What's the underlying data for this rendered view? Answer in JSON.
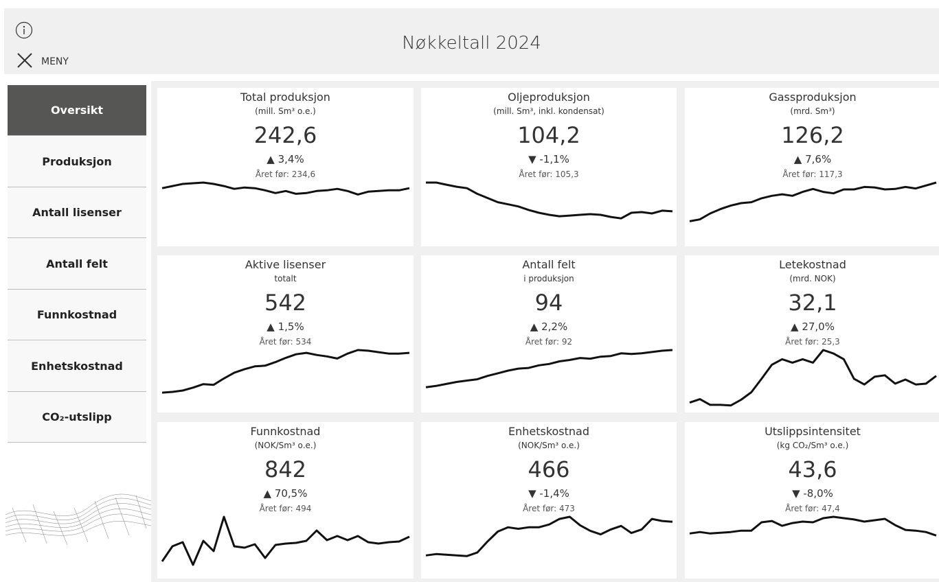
{
  "header": {
    "title": "Nøkkeltall 2024",
    "menu_label": "MENY"
  },
  "sidebar": {
    "items": [
      "Oversikt",
      "Produksjon",
      "Antall lisenser",
      "Antall felt",
      "Funnkostnad",
      "Enhetskostnad",
      "CO₂-utslipp"
    ],
    "active": 0
  },
  "cards": [
    {
      "title": "Total produksjon",
      "subtitle": "(mill. Sm³ o.e.)",
      "value": "242,6",
      "change": "▲ 3,4%",
      "prior": "Året før: 234,6",
      "trend": [
        240,
        249,
        258,
        261,
        264,
        258,
        249,
        237,
        243,
        240,
        231,
        219,
        228,
        216,
        219,
        228,
        231,
        237,
        228,
        213,
        225,
        228,
        231,
        231,
        240
      ]
    },
    {
      "title": "Oljeproduksjon",
      "subtitle": "(mill. Sm³, inkl. kondensat)",
      "value": "104,2",
      "change": "▼ -1,1%",
      "prior": "Året før: 105,3",
      "trend": [
        176,
        176,
        170,
        164,
        160,
        144,
        132,
        120,
        114,
        108,
        98,
        90,
        84,
        80,
        82,
        84,
        86,
        84,
        78,
        74,
        90,
        92,
        88,
        96,
        94
      ]
    },
    {
      "title": "Gassproduksjon",
      "subtitle": "(mrd. Sm³)",
      "value": "126,2",
      "change": "▲ 7,6%",
      "prior": "Året før: 117,3",
      "trend": [
        47,
        51,
        63,
        72,
        79,
        84,
        86,
        94,
        99,
        102,
        99,
        107,
        113,
        107,
        104,
        112,
        112,
        117,
        116,
        112,
        113,
        117,
        114,
        120,
        126
      ]
    },
    {
      "title": "Aktive lisenser",
      "subtitle": "totalt",
      "value": "542",
      "change": "▲ 1,5%",
      "prior": "Året før: 534",
      "trend": [
        162,
        168,
        180,
        204,
        234,
        228,
        282,
        330,
        360,
        384,
        390,
        420,
        456,
        486,
        498,
        480,
        468,
        450,
        492,
        522,
        516,
        504,
        492,
        492,
        498
      ]
    },
    {
      "title": "Antall felt",
      "subtitle": "i produksjon",
      "value": "94",
      "change": "▲ 2,2%",
      "prior": "Året før: 92",
      "trend": [
        37,
        39,
        42,
        45,
        47,
        49,
        54,
        58,
        62,
        65,
        66,
        70,
        72,
        76,
        78,
        81,
        80,
        83,
        84,
        88,
        87,
        88,
        90,
        92,
        93
      ]
    },
    {
      "title": "Letekostnad",
      "subtitle": "(mrd. NOK)",
      "value": "32,1",
      "change": "▲ 27,0%",
      "prior": "Året før: 25,3",
      "trend": [
        5.8,
        8,
        4.4,
        4.4,
        4,
        7.6,
        12.4,
        20.9,
        29.8,
        33.3,
        31.1,
        33.3,
        31.1,
        39.1,
        36.9,
        33.3,
        20.9,
        17.3,
        22.2,
        23.1,
        17.8,
        20.4,
        17.3,
        17.8,
        22.7
      ]
    },
    {
      "title": "Funnkostnad",
      "subtitle": "(NOK/Sm³ o.e.)",
      "value": "842",
      "change": "▲ 70,5%",
      "prior": "Året før: 494",
      "trend": [
        556,
        1044,
        1178,
        444,
        1222,
        889,
        2000,
        1044,
        1000,
        1111,
        667,
        1089,
        1133,
        1156,
        1222,
        1556,
        1244,
        1378,
        1244,
        1378,
        1178,
        1133,
        1178,
        1200,
        1356
      ]
    },
    {
      "title": "Enhetskostnad",
      "subtitle": "(NOK/Sm³ o.e.)",
      "value": "466",
      "change": "▼ -1,4%",
      "prior": "Året før: 473",
      "trend": [
        183,
        194,
        189,
        183,
        178,
        206,
        294,
        372,
        406,
        394,
        406,
        406,
        428,
        472,
        489,
        422,
        378,
        350,
        389,
        417,
        361,
        389,
        472,
        456,
        450
      ]
    },
    {
      "title": "Utslippsintensitet",
      "subtitle": "(kg CO₂/Sm³ o.e.)",
      "value": "43,6",
      "change": "▼ -8,0%",
      "prior": "Året før: 47,4",
      "trend": [
        43.3,
        44.7,
        43.3,
        44,
        44.7,
        46,
        46,
        54,
        55.3,
        50.7,
        53.3,
        54.7,
        54,
        58,
        59.3,
        58,
        56.7,
        54.7,
        56,
        57.3,
        51.3,
        46.7,
        46,
        44.7,
        41.3
      ]
    }
  ]
}
